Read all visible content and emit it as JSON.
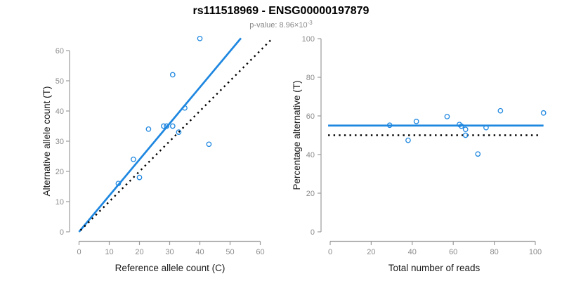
{
  "colors": {
    "accent_blue": "#1E87E0",
    "axis_line_gray": "#9B9B9B",
    "tick_label_gray": "#8C8C8C",
    "axis_title_black": "#1A1A1A",
    "dotted_line_black": "#000000",
    "subtitle_gray": "#888888",
    "background": "#FFFFFF"
  },
  "chart_data": {
    "type": "scatter",
    "figure_title": "rs111518969 - ENSG00000197879",
    "subtitle": {
      "prefix": "p-value: 8.96×10",
      "exponent": "-3"
    },
    "grid": false,
    "legend": null,
    "plots": [
      {
        "name": "allele-counts-scatter",
        "type": "scatter",
        "xlabel": "Reference allele count (C)",
        "ylabel": "Alternative allele count (T)",
        "xlim": [
          0,
          63
        ],
        "ylim": [
          0,
          64
        ],
        "xticks": [
          0,
          10,
          20,
          30,
          40,
          50,
          60
        ],
        "yticks": [
          0,
          10,
          20,
          30,
          40,
          50,
          60
        ],
        "points": [
          [
            13,
            16
          ],
          [
            18,
            24
          ],
          [
            20,
            18
          ],
          [
            23,
            34
          ],
          [
            28,
            35
          ],
          [
            29,
            35
          ],
          [
            31,
            35
          ],
          [
            31,
            52
          ],
          [
            33,
            33
          ],
          [
            35,
            41
          ],
          [
            40,
            64
          ],
          [
            43,
            29
          ]
        ],
        "lines": [
          {
            "name": "fitted-proportion-line",
            "style": "solid",
            "color": "#1E87E0",
            "from": [
              0,
              0
            ],
            "to": [
              53.6,
              64.1
            ]
          },
          {
            "name": "identity-line",
            "style": "dotted",
            "color": "#000000",
            "from": [
              0.5,
              0.5
            ],
            "to": [
              63.9,
              63.9
            ]
          }
        ]
      },
      {
        "name": "percentage-vs-coverage-scatter",
        "type": "scatter",
        "xlabel": "Total number of reads",
        "ylabel": "Percentage alternative (T)",
        "xlim": [
          0,
          104
        ],
        "ylim": [
          0,
          100
        ],
        "xticks": [
          0,
          20,
          40,
          60,
          80,
          100
        ],
        "yticks": [
          0,
          20,
          40,
          60,
          80,
          100
        ],
        "points": [
          [
            29,
            55.17
          ],
          [
            38,
            47.37
          ],
          [
            42,
            57.14
          ],
          [
            57,
            59.65
          ],
          [
            63,
            55.56
          ],
          [
            64,
            54.69
          ],
          [
            66,
            53.03
          ],
          [
            66,
            50.0
          ],
          [
            72,
            40.28
          ],
          [
            76,
            53.95
          ],
          [
            83,
            62.65
          ],
          [
            104,
            61.54
          ]
        ],
        "lines": [
          {
            "name": "mean-percentage-line",
            "style": "solid",
            "color": "#1E87E0",
            "from": [
              -1,
              55
            ],
            "to": [
              104,
              55
            ]
          },
          {
            "name": "fifty-percent-line",
            "style": "dotted",
            "color": "#000000",
            "from": [
              -1,
              50
            ],
            "to": [
              102,
              50
            ]
          }
        ]
      }
    ]
  }
}
